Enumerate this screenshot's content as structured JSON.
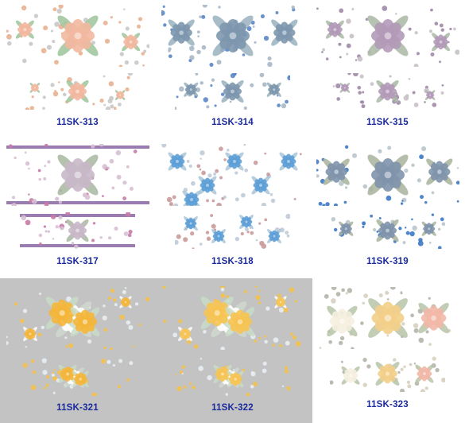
{
  "products": [
    {
      "code": "11SK-313",
      "palette": {
        "main": "#f2b8a0",
        "accent": "#9cc49a",
        "dot": "#e8b090",
        "dot2": "#c8c8c8"
      },
      "bg": "#ffffff",
      "theme": "peach-roses"
    },
    {
      "code": "11SK-314",
      "palette": {
        "main": "#7d97ae",
        "accent": "#9ab2c0",
        "dot": "#5b86c8",
        "dot2": "#a8b8c8"
      },
      "bg": "#ffffff",
      "theme": "blue-roses"
    },
    {
      "code": "11SK-315",
      "palette": {
        "main": "#b39ab8",
        "accent": "#a9b8a4",
        "dot": "#a08aa8",
        "dot2": "#c8c0c8"
      },
      "bg": "#ffffff",
      "theme": "mauve-roses"
    },
    {
      "code": "11SK-317",
      "palette": {
        "main": "#c8b8c8",
        "accent": "#a8b8a0",
        "dot": "#c77aa8",
        "dot2": "#d6c0d2"
      },
      "bg": "#ffffff",
      "theme": "lavender-border"
    },
    {
      "code": "11SK-318",
      "palette": {
        "main": "#5d9fd6",
        "accent": "#a9c5d8",
        "dot": "#c99a9a",
        "dot2": "#bfcbd8"
      },
      "bg": "#ffffff",
      "theme": "blue-hydrangea"
    },
    {
      "code": "11SK-319",
      "palette": {
        "main": "#7f94ab",
        "accent": "#a8b39c",
        "dot": "#3c78c4",
        "dot2": "#b8c4cc"
      },
      "bg": "#ffffff",
      "theme": "slate-roses"
    },
    {
      "code": "11SK-321",
      "palette": {
        "main": "#f4b63a",
        "accent": "#ffffff",
        "dot": "#f6c24a",
        "dot2": "#e8eef2"
      },
      "bg": "transparent",
      "theme": "yellow-flowers"
    },
    {
      "code": "11SK-322",
      "palette": {
        "main": "#f6c453",
        "accent": "#ffffff",
        "dot": "#f4c24e",
        "dot2": "#e8eef2"
      },
      "bg": "transparent",
      "theme": "yellow-white-flowers"
    },
    {
      "code": "11SK-323",
      "palette": {
        "main": "#f3cf8a",
        "accent": "#f2b8a8",
        "dot": "#b4b4a8",
        "dot2": "#d8d0c0"
      },
      "bg": "#ffffff",
      "theme": "ranunculus"
    }
  ]
}
